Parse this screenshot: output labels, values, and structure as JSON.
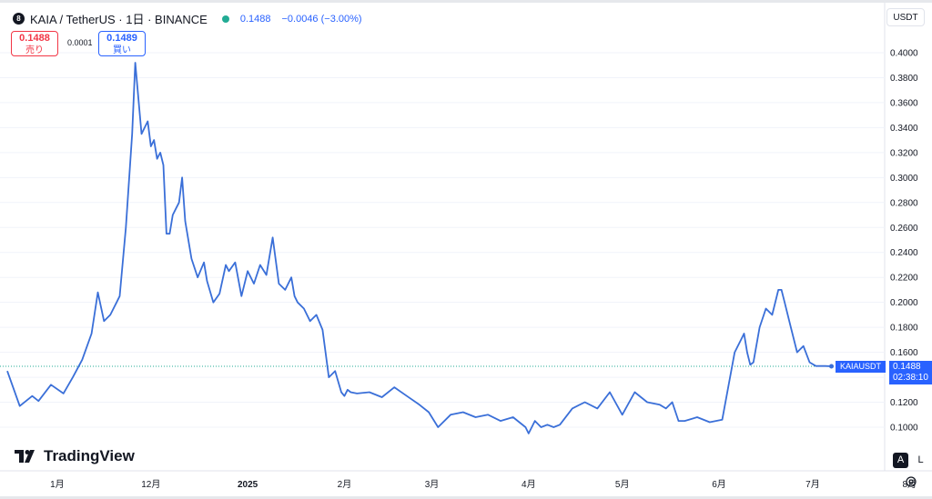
{
  "header": {
    "title": "KAIA / TetherUS · 1日 · BINANCE",
    "logo_letter": "8",
    "price": "0.1488",
    "change": "−0.0046 (−3.00%)"
  },
  "trade": {
    "sell_value": "0.1488",
    "sell_label": "売り",
    "spread": "0.0001",
    "buy_value": "0.1489",
    "buy_label": "買い"
  },
  "currency_button": "USDT",
  "last_price": {
    "symbol": "KAIAUSDT",
    "value": "0.1488",
    "countdown": "02:38:10"
  },
  "branding": {
    "name": "TradingView"
  },
  "controls": {
    "auto": "A",
    "log": "L"
  },
  "colors": {
    "line": "#3a6fd8",
    "accent": "#2962ff",
    "sell": "#f23645",
    "live": "#22ab94",
    "grid": "#f0f3fa"
  },
  "chart_data": {
    "type": "line",
    "title": "KAIA / TetherUS · 1日 · BINANCE",
    "xlabel": "",
    "ylabel": "",
    "ylim": [
      0.085,
      0.42
    ],
    "grid": true,
    "series": [
      {
        "x": [
          "10-16",
          "10-20",
          "10-24",
          "10-26",
          "10-30",
          "11-03",
          "11-06",
          "11-09",
          "11-12",
          "11-14",
          "11-16",
          "11-18",
          "11-20",
          "11-21",
          "11-23",
          "11-25",
          "11-26",
          "11-28",
          "11-30",
          "12-01",
          "12-02",
          "12-03",
          "12-04",
          "12-05",
          "12-06",
          "12-07",
          "12-08",
          "12-09",
          "12-10",
          "12-11",
          "12-12",
          "12-14",
          "12-16",
          "12-18",
          "12-19",
          "12-21",
          "12-23",
          "12-25",
          "12-26",
          "12-28",
          "12-30",
          "01-01",
          "01-03",
          "01-05",
          "01-07",
          "01-09",
          "01-11",
          "01-13",
          "01-15",
          "01-16",
          "01-17",
          "01-19",
          "01-21",
          "01-23",
          "01-25",
          "01-27",
          "01-29",
          "01-31",
          "02-01",
          "02-02",
          "02-03",
          "02-05",
          "02-09",
          "02-13",
          "02-17",
          "02-21",
          "02-25",
          "02-28",
          "03-03",
          "03-07",
          "03-11",
          "03-15",
          "03-19",
          "03-23",
          "03-27",
          "03-31",
          "04-01",
          "04-03",
          "04-05",
          "04-07",
          "04-09",
          "04-11",
          "04-15",
          "04-19",
          "04-23",
          "04-27",
          "05-01",
          "05-05",
          "05-09",
          "05-13",
          "05-15",
          "05-17",
          "05-19",
          "05-21",
          "05-25",
          "05-29",
          "06-02",
          "06-06",
          "06-08",
          "06-09",
          "06-10",
          "06-11",
          "06-12",
          "06-14",
          "06-16",
          "06-18",
          "06-20",
          "06-21",
          "06-22",
          "06-24",
          "06-26",
          "06-28",
          "06-30",
          "07-02",
          "07-05",
          "07-07"
        ],
        "y": [
          0.145,
          0.117,
          0.125,
          0.121,
          0.134,
          0.127,
          0.14,
          0.154,
          0.175,
          0.208,
          0.185,
          0.19,
          0.2,
          0.205,
          0.26,
          0.335,
          0.392,
          0.335,
          0.345,
          0.325,
          0.33,
          0.315,
          0.32,
          0.31,
          0.255,
          0.255,
          0.27,
          0.275,
          0.28,
          0.3,
          0.265,
          0.235,
          0.22,
          0.232,
          0.217,
          0.2,
          0.207,
          0.23,
          0.225,
          0.232,
          0.205,
          0.225,
          0.215,
          0.23,
          0.222,
          0.252,
          0.215,
          0.21,
          0.22,
          0.205,
          0.2,
          0.195,
          0.185,
          0.19,
          0.178,
          0.14,
          0.145,
          0.128,
          0.125,
          0.13,
          0.128,
          0.127,
          0.128,
          0.124,
          0.132,
          0.125,
          0.118,
          0.112,
          0.1,
          0.11,
          0.112,
          0.108,
          0.11,
          0.105,
          0.108,
          0.1,
          0.095,
          0.105,
          0.1,
          0.102,
          0.1,
          0.102,
          0.115,
          0.12,
          0.115,
          0.128,
          0.11,
          0.128,
          0.12,
          0.118,
          0.115,
          0.12,
          0.105,
          0.105,
          0.108,
          0.104,
          0.106,
          0.16,
          0.17,
          0.175,
          0.16,
          0.15,
          0.152,
          0.18,
          0.195,
          0.19,
          0.21,
          0.21,
          0.2,
          0.18,
          0.16,
          0.165,
          0.152,
          0.149,
          0.149,
          0.1488
        ]
      }
    ],
    "yaxis_ticks": [
      "0.4000",
      "0.3800",
      "0.3600",
      "0.3400",
      "0.3200",
      "0.3000",
      "0.2800",
      "0.2600",
      "0.2400",
      "0.2200",
      "0.2000",
      "0.1800",
      "0.1600",
      "0.1400",
      "0.1200",
      "0.1000"
    ],
    "xaxis_ticks": [
      "1月",
      "12月",
      "2025",
      "2月",
      "3月",
      "4月",
      "5月",
      "6月",
      "7月",
      "8月"
    ],
    "last_value": 0.1488
  }
}
